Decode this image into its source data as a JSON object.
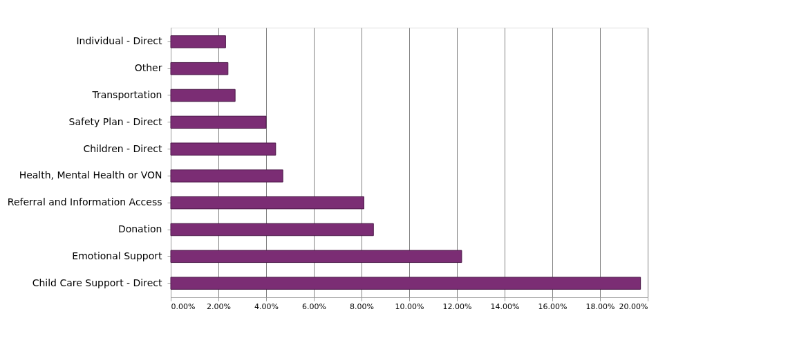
{
  "chart_data": {
    "type": "bar",
    "orientation": "horizontal",
    "categories": [
      "Individual - Direct",
      "Other",
      "Transportation",
      "Safety Plan - Direct",
      "Children - Direct",
      "Health, Mental Health or VON",
      "Referral and Information Access",
      "Donation",
      "Emotional Support",
      "Child Care Support - Direct"
    ],
    "values": [
      2.3,
      2.4,
      2.7,
      4.0,
      4.4,
      4.7,
      8.1,
      8.5,
      12.2,
      19.7
    ],
    "color": "#7b2d74",
    "xlim": [
      0,
      20
    ],
    "xticks": [
      {
        "value": 0,
        "label": "0.00%"
      },
      {
        "value": 2,
        "label": "2.00%"
      },
      {
        "value": 4,
        "label": "4.00%"
      },
      {
        "value": 6,
        "label": "6.00%"
      },
      {
        "value": 8,
        "label": "8.00%"
      },
      {
        "value": 10,
        "label": "10.00%"
      },
      {
        "value": 12,
        "label": "12.00%"
      },
      {
        "value": 14,
        "label": "14.00%"
      },
      {
        "value": 16,
        "label": "16.00%"
      },
      {
        "value": 18,
        "label": "18.00%"
      },
      {
        "value": 20,
        "label": "20.00%"
      }
    ],
    "grid": "x"
  }
}
